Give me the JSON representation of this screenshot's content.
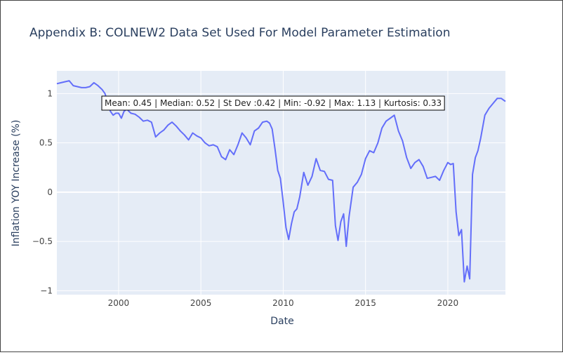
{
  "colors": {
    "background": "#ffffff",
    "plot_bg": "#e5ecf6",
    "grid": "#ffffff",
    "line": "#636efa",
    "text": "#2a3f5f",
    "tick_text": "#444444",
    "annotation_border": "#000000",
    "annotation_bg": "#ffffff"
  },
  "chart_data": {
    "type": "line",
    "title": "Appendix B: COLNEW2 Data Set Used For Model Parameter Estimation",
    "xlabel": "Date",
    "ylabel": "Inflation YOY Increase (%)",
    "xlim": [
      1996.25,
      2023.5
    ],
    "ylim": [
      -1.04,
      1.23
    ],
    "x_ticks": [
      2000,
      2005,
      2010,
      2015,
      2020
    ],
    "x_tick_labels": [
      "2000",
      "2005",
      "2010",
      "2015",
      "2020"
    ],
    "y_ticks": [
      -1,
      -0.5,
      0,
      0.5,
      1
    ],
    "y_tick_labels": [
      "−1",
      "−0.5",
      "0",
      "0.5",
      "1"
    ],
    "grid": true,
    "annotation": "Mean: 0.45 | Median: 0.52 | St Dev :0.42 | Min: -0.92 | Max: 1.13 | Kurtosis: 0.33",
    "series": [
      {
        "x": [
          1996.25,
          1996.5,
          1996.75,
          1997.0,
          1997.25,
          1997.5,
          1997.75,
          1998.0,
          1998.25,
          1998.5,
          1998.75,
          1999.0,
          1999.17,
          1999.33,
          1999.5,
          1999.67,
          1999.83,
          2000.0,
          2000.17,
          2000.33,
          2000.5,
          2000.75,
          2001.0,
          2001.25,
          2001.5,
          2001.75,
          2002.0,
          2002.25,
          2002.5,
          2002.75,
          2003.0,
          2003.25,
          2003.5,
          2003.75,
          2004.0,
          2004.25,
          2004.5,
          2004.75,
          2005.0,
          2005.25,
          2005.5,
          2005.75,
          2006.0,
          2006.25,
          2006.5,
          2006.75,
          2007.0,
          2007.25,
          2007.5,
          2007.75,
          2008.0,
          2008.25,
          2008.5,
          2008.75,
          2009.0,
          2009.17,
          2009.33,
          2009.5,
          2009.67,
          2009.83,
          2010.0,
          2010.17,
          2010.33,
          2010.5,
          2010.67,
          2010.83,
          2011.0,
          2011.25,
          2011.5,
          2011.75,
          2012.0,
          2012.25,
          2012.5,
          2012.75,
          2013.0,
          2013.17,
          2013.33,
          2013.5,
          2013.67,
          2013.83,
          2014.0,
          2014.25,
          2014.5,
          2014.75,
          2015.0,
          2015.25,
          2015.5,
          2015.75,
          2016.0,
          2016.25,
          2016.5,
          2016.75,
          2017.0,
          2017.25,
          2017.5,
          2017.75,
          2018.0,
          2018.25,
          2018.5,
          2018.75,
          2019.0,
          2019.25,
          2019.5,
          2019.75,
          2020.0,
          2020.17,
          2020.33,
          2020.5,
          2020.67,
          2020.83,
          2021.0,
          2021.17,
          2021.33,
          2021.5,
          2021.67,
          2021.83,
          2022.0,
          2022.25,
          2022.5,
          2022.75,
          2023.0,
          2023.25,
          2023.5
        ],
        "y": [
          1.1,
          1.11,
          1.12,
          1.13,
          1.08,
          1.07,
          1.06,
          1.06,
          1.07,
          1.11,
          1.08,
          1.04,
          1.0,
          0.92,
          0.82,
          0.78,
          0.8,
          0.8,
          0.75,
          0.82,
          0.84,
          0.8,
          0.79,
          0.76,
          0.72,
          0.73,
          0.71,
          0.56,
          0.6,
          0.63,
          0.68,
          0.71,
          0.67,
          0.62,
          0.58,
          0.53,
          0.6,
          0.57,
          0.55,
          0.5,
          0.47,
          0.48,
          0.46,
          0.36,
          0.33,
          0.43,
          0.38,
          0.48,
          0.6,
          0.55,
          0.48,
          0.62,
          0.65,
          0.71,
          0.72,
          0.7,
          0.64,
          0.44,
          0.22,
          0.14,
          -0.1,
          -0.36,
          -0.48,
          -0.32,
          -0.2,
          -0.17,
          -0.05,
          0.2,
          0.07,
          0.16,
          0.34,
          0.22,
          0.21,
          0.13,
          0.12,
          -0.34,
          -0.49,
          -0.3,
          -0.22,
          -0.55,
          -0.25,
          0.05,
          0.1,
          0.18,
          0.34,
          0.42,
          0.4,
          0.5,
          0.65,
          0.72,
          0.75,
          0.78,
          0.62,
          0.52,
          0.35,
          0.24,
          0.3,
          0.33,
          0.26,
          0.14,
          0.15,
          0.16,
          0.12,
          0.22,
          0.3,
          0.28,
          0.29,
          -0.2,
          -0.44,
          -0.38,
          -0.91,
          -0.75,
          -0.88,
          0.18,
          0.35,
          0.42,
          0.55,
          0.78,
          0.85,
          0.9,
          0.95,
          0.95,
          0.92
        ]
      }
    ]
  }
}
